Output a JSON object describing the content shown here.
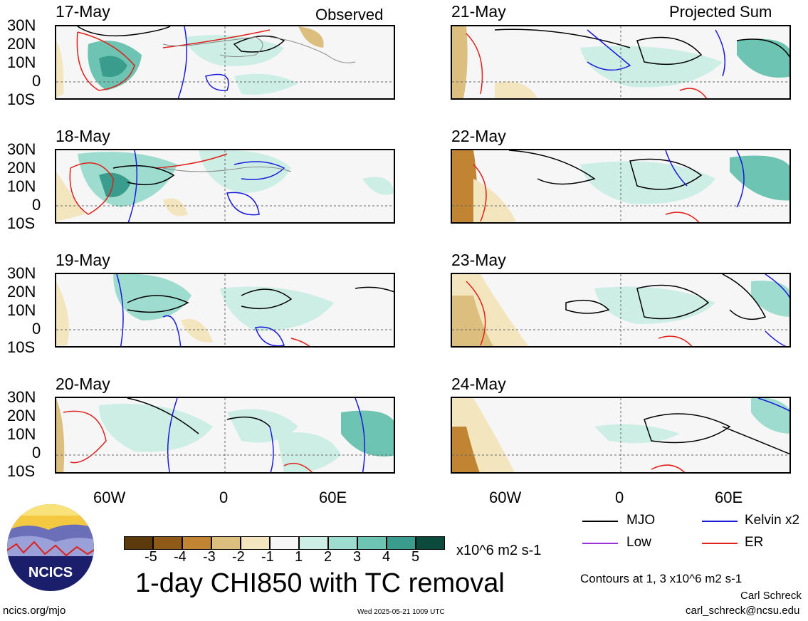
{
  "header": {
    "observed_label": "Observed",
    "projected_label": "Projected Sum"
  },
  "panels_observed": [
    {
      "date": "17-May"
    },
    {
      "date": "18-May"
    },
    {
      "date": "19-May"
    },
    {
      "date": "20-May"
    }
  ],
  "panels_projected": [
    {
      "date": "21-May"
    },
    {
      "date": "22-May"
    },
    {
      "date": "23-May"
    },
    {
      "date": "24-May"
    }
  ],
  "lat_labels": [
    "30N",
    "20N",
    "10N",
    "0",
    "10S"
  ],
  "lon_labels": [
    "60W",
    "0",
    "60E"
  ],
  "colorbar": {
    "colors": [
      "#5c3a0c",
      "#8f5a18",
      "#c08432",
      "#dcbf7f",
      "#f3e5bd",
      "#f6f6f6",
      "#cdeee4",
      "#9ddcce",
      "#6ec4b2",
      "#399c8c",
      "#0e7466",
      "#0c4a3e"
    ],
    "ticks": [
      "-5",
      "-4",
      "-3",
      "-2",
      "-1",
      "1",
      "2",
      "3",
      "4",
      "5"
    ],
    "units": "x10^6 m2 s-1"
  },
  "title": "1-day CHI850 with TC removal",
  "legend": {
    "items": [
      {
        "label": "MJO",
        "color": "#000000"
      },
      {
        "label": "Kelvin x2",
        "color": "#1a1adc"
      },
      {
        "label": "Low",
        "color": "#9b2fdc"
      },
      {
        "label": "ER",
        "color": "#e0201a"
      }
    ],
    "contours_note": "Contours at 1, 3 x10^6 m2 s-1"
  },
  "footer": {
    "url": "ncics.org/mjo",
    "timestamp": "Wed 2025-05-21 1009 UTC",
    "author": "Carl Schreck",
    "email": "carl_schreck@ncsu.edu"
  },
  "logo": {
    "text": "NCICS"
  }
}
